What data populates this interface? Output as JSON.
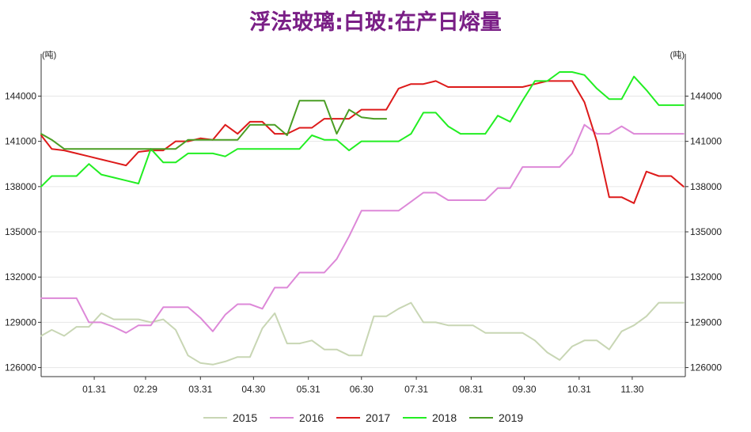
{
  "chart_data": {
    "type": "line",
    "title": "浮法玻璃:白玻:在产日熔量",
    "left_unit": "(吨)",
    "right_unit": "(吨)",
    "x_ticks": [
      "01.31",
      "02.29",
      "03.31",
      "04.30",
      "05.31",
      "06.30",
      "07.31",
      "08.31",
      "09.30",
      "10.31",
      "11.30"
    ],
    "x_tick_days": [
      31,
      60,
      91,
      121,
      152,
      182,
      213,
      244,
      274,
      305,
      335
    ],
    "xlim": [
      1,
      365
    ],
    "y_ticks": [
      "126000",
      "129000",
      "132000",
      "135000",
      "138000",
      "141000",
      "144000"
    ],
    "y_tick_values": [
      126000,
      129000,
      132000,
      135000,
      138000,
      141000,
      144000
    ],
    "ylim": [
      125400,
      146700
    ],
    "grid": "horizontal",
    "legend_position": "bottom",
    "series": [
      {
        "name": "2015",
        "color": "#c8d6b4",
        "x": [
          1,
          7,
          14,
          21,
          28,
          35,
          42,
          49,
          56,
          63,
          70,
          77,
          84,
          91,
          98,
          105,
          112,
          119,
          126,
          133,
          140,
          147,
          154,
          161,
          168,
          175,
          182,
          189,
          196,
          203,
          210,
          217,
          224,
          231,
          238,
          245,
          252,
          259,
          266,
          273,
          280,
          287,
          294,
          301,
          308,
          315,
          322,
          329,
          336,
          343,
          350,
          357,
          364
        ],
        "y": [
          128100,
          128500,
          128100,
          128700,
          128700,
          129600,
          129200,
          129200,
          129200,
          129000,
          129200,
          128500,
          126800,
          126300,
          126200,
          126400,
          126700,
          126700,
          128600,
          129600,
          127600,
          127600,
          127800,
          127200,
          127200,
          126800,
          126800,
          129400,
          129400,
          129900,
          130300,
          129000,
          129000,
          128800,
          128800,
          128800,
          128300,
          128300,
          128300,
          128300,
          127800,
          127000,
          126500,
          127400,
          127800,
          127800,
          127200,
          128400,
          128800,
          129400,
          130300,
          130300,
          130300
        ]
      },
      {
        "name": "2016",
        "color": "#dd88d8",
        "x": [
          1,
          7,
          14,
          21,
          28,
          35,
          42,
          49,
          56,
          63,
          70,
          77,
          84,
          91,
          98,
          105,
          112,
          119,
          126,
          133,
          140,
          147,
          154,
          161,
          168,
          175,
          182,
          189,
          196,
          203,
          210,
          217,
          224,
          231,
          238,
          245,
          252,
          259,
          266,
          273,
          280,
          287,
          294,
          301,
          308,
          315,
          322,
          329,
          336,
          343,
          350,
          357,
          364
        ],
        "y": [
          130600,
          130600,
          130600,
          130600,
          129000,
          129000,
          128700,
          128300,
          128800,
          128800,
          130000,
          130000,
          130000,
          129300,
          128400,
          129500,
          130200,
          130200,
          129900,
          131300,
          131300,
          132300,
          132300,
          132300,
          133200,
          134700,
          136400,
          136400,
          136400,
          136400,
          137000,
          137600,
          137600,
          137100,
          137100,
          137100,
          137100,
          137900,
          137900,
          139300,
          139300,
          139300,
          139300,
          140200,
          142100,
          141500,
          141500,
          142000,
          141500,
          141500,
          141500,
          141500,
          141500
        ]
      },
      {
        "name": "2017",
        "color": "#dd1a1a",
        "x": [
          1,
          7,
          14,
          21,
          28,
          35,
          42,
          49,
          56,
          63,
          70,
          77,
          84,
          91,
          98,
          105,
          112,
          119,
          126,
          133,
          140,
          147,
          154,
          161,
          168,
          175,
          182,
          189,
          196,
          203,
          210,
          217,
          224,
          231,
          238,
          245,
          252,
          259,
          266,
          273,
          280,
          287,
          294,
          301,
          308,
          315,
          322,
          329,
          336,
          343,
          350,
          357,
          364
        ],
        "y": [
          141400,
          140500,
          140400,
          140200,
          140000,
          139800,
          139600,
          139400,
          140300,
          140400,
          140400,
          141000,
          141000,
          141200,
          141100,
          142100,
          141500,
          142300,
          142300,
          141500,
          141500,
          141900,
          141900,
          142500,
          142500,
          142500,
          143100,
          143100,
          143100,
          144500,
          144800,
          144800,
          145000,
          144600,
          144600,
          144600,
          144600,
          144600,
          144600,
          144600,
          144800,
          145000,
          145000,
          145000,
          143600,
          141000,
          137300,
          137300,
          136900,
          139000,
          138700,
          138700,
          138000
        ]
      },
      {
        "name": "2018",
        "color": "#22ee22",
        "x": [
          1,
          7,
          14,
          21,
          28,
          35,
          42,
          49,
          56,
          63,
          70,
          77,
          84,
          91,
          98,
          105,
          112,
          119,
          126,
          133,
          140,
          147,
          154,
          161,
          168,
          175,
          182,
          189,
          196,
          203,
          210,
          217,
          224,
          231,
          238,
          245,
          252,
          259,
          266,
          273,
          280,
          287,
          294,
          301,
          308,
          315,
          322,
          329,
          336,
          343,
          350,
          357,
          364
        ],
        "y": [
          138000,
          138700,
          138700,
          138700,
          139500,
          138800,
          138600,
          138400,
          138200,
          140500,
          139600,
          139600,
          140200,
          140200,
          140200,
          140000,
          140500,
          140500,
          140500,
          140500,
          140500,
          140500,
          141400,
          141100,
          141100,
          140400,
          141000,
          141000,
          141000,
          141000,
          141500,
          142900,
          142900,
          142000,
          141500,
          141500,
          141500,
          142700,
          142300,
          143700,
          145000,
          145000,
          145600,
          145600,
          145400,
          144500,
          143800,
          143800,
          145300,
          144400,
          143400,
          143400,
          143400
        ]
      },
      {
        "name": "2019",
        "color": "#4a9e24",
        "x": [
          1,
          7,
          14,
          21,
          28,
          35,
          42,
          49,
          56,
          63,
          70,
          77,
          84,
          91,
          98,
          105,
          112,
          119,
          126,
          133,
          140,
          147,
          154,
          161,
          168,
          175,
          182,
          189,
          196
        ],
        "y": [
          141500,
          141100,
          140500,
          140500,
          140500,
          140500,
          140500,
          140500,
          140500,
          140500,
          140500,
          140500,
          141100,
          141100,
          141100,
          141100,
          141100,
          142100,
          142100,
          142100,
          141400,
          143700,
          143700,
          143700,
          141500,
          143100,
          142600,
          142500,
          142500
        ]
      }
    ]
  }
}
